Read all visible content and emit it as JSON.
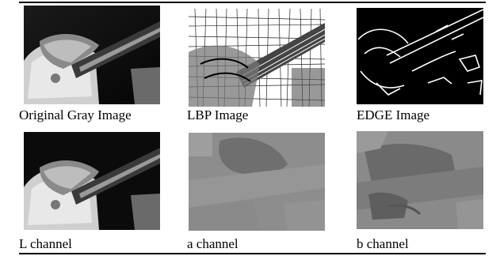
{
  "figure": {
    "rows": [
      {
        "panels": [
          {
            "caption": "Original Gray Image"
          },
          {
            "caption": "LBP Image"
          },
          {
            "caption": "EDGE Image"
          }
        ]
      },
      {
        "panels": [
          {
            "caption": "L channel"
          },
          {
            "caption": "a channel"
          },
          {
            "caption": "b channel"
          }
        ]
      }
    ]
  }
}
